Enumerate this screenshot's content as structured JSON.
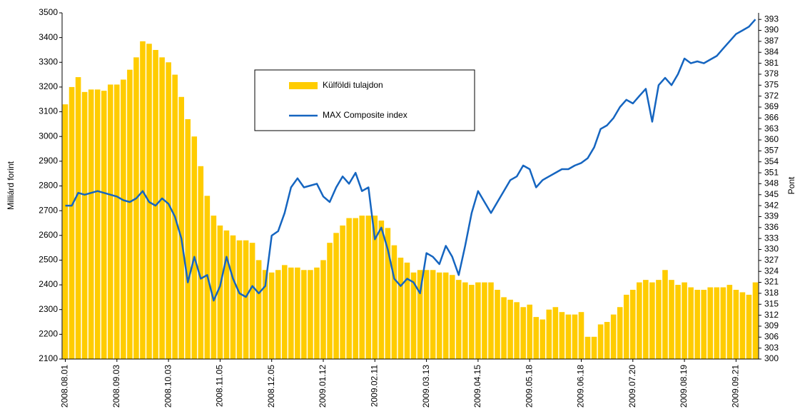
{
  "chart_data": {
    "type": "bar-line",
    "ylabel": "Milliárd forint",
    "y2label": "Pont",
    "categories": [
      "2008.08.01",
      null,
      null,
      null,
      null,
      null,
      null,
      null,
      "2008.09.03",
      null,
      null,
      null,
      null,
      null,
      null,
      null,
      "2008.10.03",
      null,
      null,
      null,
      null,
      null,
      null,
      null,
      "2008.11.05",
      null,
      null,
      null,
      null,
      null,
      null,
      null,
      "2008.12.05",
      null,
      null,
      null,
      null,
      null,
      null,
      null,
      "2009.01.12",
      null,
      null,
      null,
      null,
      null,
      null,
      null,
      "2009.02.11",
      null,
      null,
      null,
      null,
      null,
      null,
      null,
      "2009.03.13",
      null,
      null,
      null,
      null,
      null,
      null,
      null,
      "2009.04.15",
      null,
      null,
      null,
      null,
      null,
      null,
      null,
      "2009.05.18",
      null,
      null,
      null,
      null,
      null,
      null,
      null,
      "2009.06.18",
      null,
      null,
      null,
      null,
      null,
      null,
      null,
      "2009.07.20",
      null,
      null,
      null,
      null,
      null,
      null,
      null,
      "2009.08.19",
      null,
      null,
      null,
      null,
      null,
      null,
      null,
      "2009.09.21",
      null,
      null,
      null
    ],
    "series": [
      {
        "name": "Külföldi tulajdon",
        "type": "bar",
        "color": "#ffcc00",
        "values": [
          3130,
          3200,
          3240,
          3180,
          3190,
          3190,
          3185,
          3210,
          3210,
          3230,
          3270,
          3320,
          3385,
          3375,
          3350,
          3320,
          3300,
          3250,
          3160,
          3070,
          3000,
          2880,
          2760,
          2680,
          2640,
          2620,
          2600,
          2580,
          2580,
          2570,
          2500,
          2460,
          2450,
          2460,
          2480,
          2470,
          2470,
          2460,
          2460,
          2470,
          2500,
          2570,
          2610,
          2640,
          2670,
          2670,
          2680,
          2680,
          2680,
          2660,
          2630,
          2560,
          2510,
          2490,
          2450,
          2460,
          2460,
          2460,
          2450,
          2450,
          2440,
          2420,
          2410,
          2400,
          2410,
          2410,
          2410,
          2380,
          2350,
          2340,
          2330,
          2310,
          2320,
          2270,
          2260,
          2300,
          2310,
          2290,
          2280,
          2280,
          2290,
          2190,
          2190,
          2240,
          2250,
          2280,
          2310,
          2360,
          2380,
          2410,
          2420,
          2410,
          2420,
          2460,
          2420,
          2400,
          2410,
          2390,
          2380,
          2380,
          2390,
          2390,
          2390,
          2400,
          2380,
          2370,
          2360,
          2410
        ]
      },
      {
        "name": "MAX Composite index",
        "type": "line",
        "axis": "y2",
        "color": "#1565c0",
        "values": [
          342,
          342,
          345.5,
          345,
          345.5,
          346,
          345.5,
          345,
          344.5,
          343.5,
          343,
          344,
          346,
          343,
          342,
          344,
          342.5,
          339,
          333,
          321,
          328,
          322,
          323,
          316,
          320,
          328,
          322,
          318,
          317,
          320,
          318,
          320,
          333.8,
          335,
          340,
          347,
          349.5,
          347,
          347.5,
          348,
          344.5,
          343,
          347,
          350,
          348,
          351,
          346,
          347,
          332.8,
          336,
          330,
          322,
          320,
          322,
          321,
          318,
          329,
          328,
          326,
          331,
          328,
          323,
          331,
          340,
          346,
          343,
          340,
          343,
          346,
          349,
          350,
          353,
          352,
          347,
          349,
          350,
          351,
          352,
          352,
          353,
          353.7,
          355,
          358,
          363,
          364,
          366,
          369,
          371,
          370,
          372,
          374,
          365,
          375,
          377,
          375,
          378,
          382.3,
          381,
          381.5,
          381,
          382,
          383,
          385,
          387,
          389,
          390,
          391,
          393
        ]
      }
    ],
    "ylim": [
      2100,
      3500
    ],
    "yticks": [
      2100,
      2200,
      2300,
      2400,
      2500,
      2600,
      2700,
      2800,
      2900,
      3000,
      3100,
      3200,
      3300,
      3400,
      3500
    ],
    "y2lim": [
      300,
      394.8
    ],
    "y2ticks": [
      300,
      303,
      306,
      309,
      312,
      315,
      318,
      321,
      324,
      327,
      330,
      333,
      336,
      339,
      342,
      345,
      348,
      351,
      354,
      357,
      360,
      363,
      366,
      369,
      372,
      375,
      378,
      381,
      384,
      387,
      390,
      393
    ]
  }
}
